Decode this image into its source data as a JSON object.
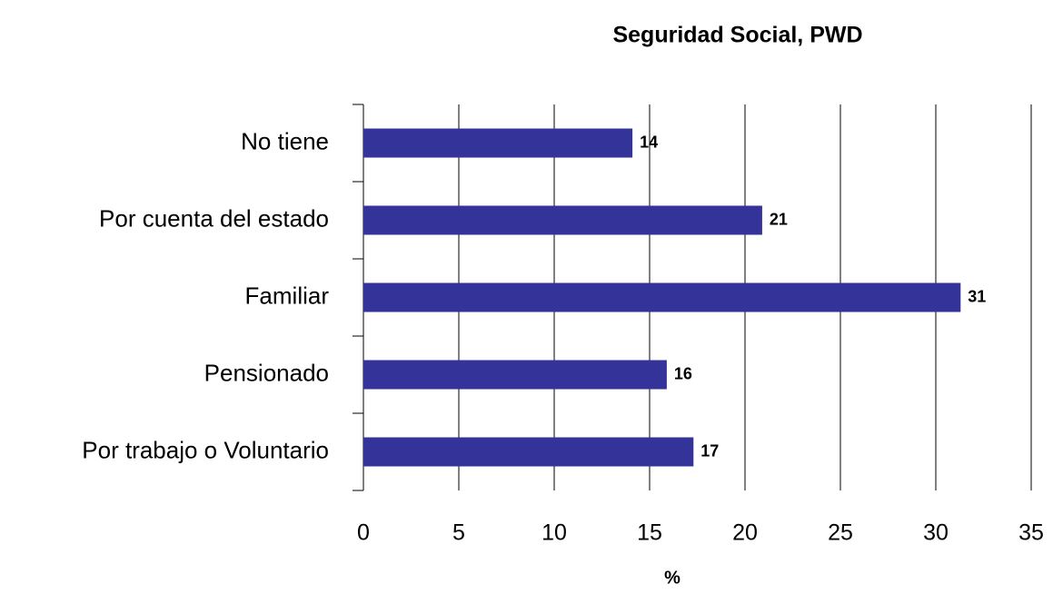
{
  "chart_data": {
    "type": "bar",
    "orientation": "horizontal",
    "title": "Seguridad Social, PWD",
    "x_label": "%",
    "categories": [
      "No tiene",
      "Por cuenta del estado",
      "Familiar",
      "Pensionado",
      "Por trabajo o Voluntario"
    ],
    "values": [
      14.1,
      20.9,
      31.3,
      15.9,
      17.3
    ],
    "value_labels": [
      "14",
      "21",
      "31",
      "16",
      "17"
    ],
    "color": "#333399",
    "xlim": [
      0,
      35
    ],
    "xticks": [
      0,
      5,
      10,
      15,
      20,
      25,
      30,
      35
    ],
    "grid": true
  }
}
